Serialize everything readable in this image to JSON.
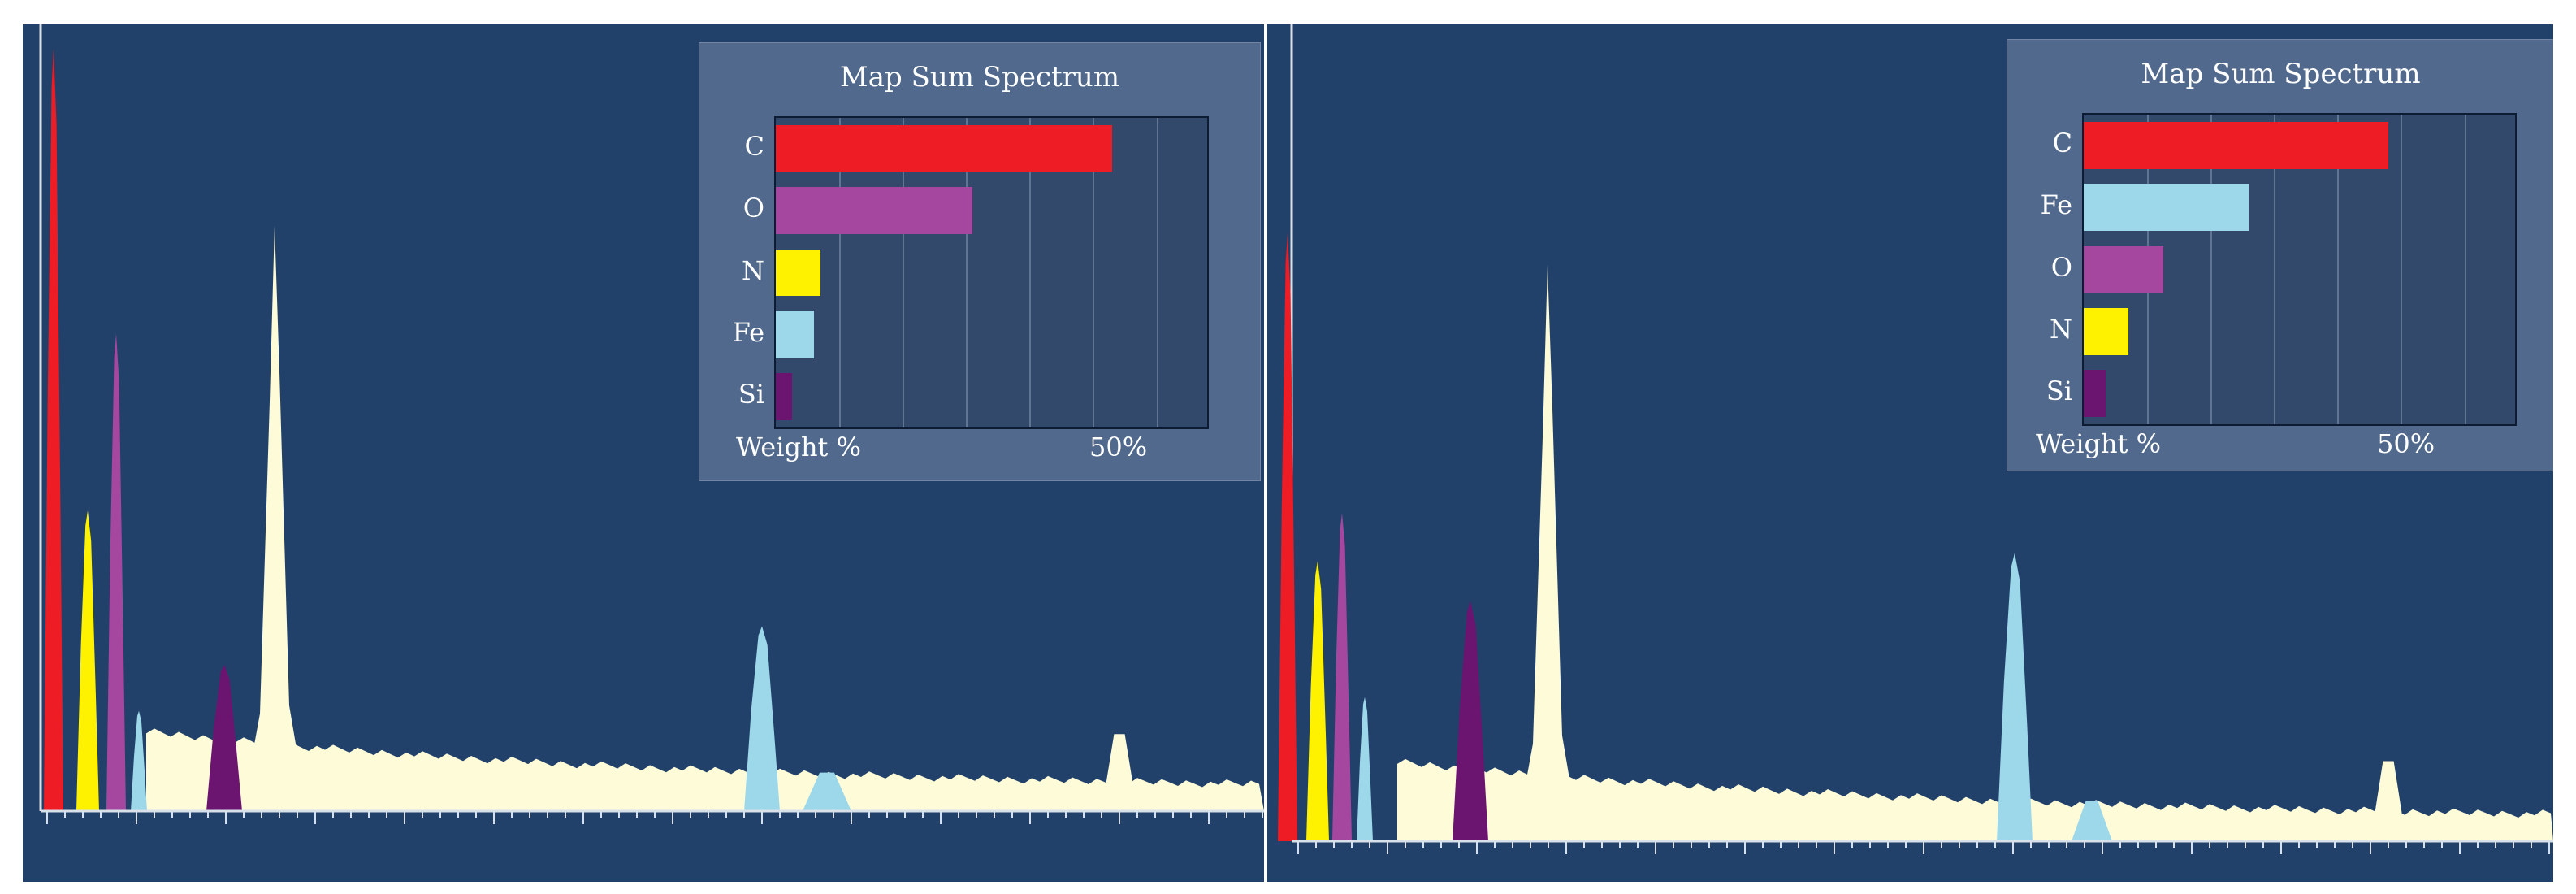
{
  "chart_data": [
    {
      "type": "bar",
      "title": "Map Sum Spectrum",
      "categories": [
        "C",
        "O",
        "N",
        "Fe",
        "Si"
      ],
      "values": [
        53,
        31,
        7,
        6,
        2.5
      ],
      "colors": [
        "#ee1c24",
        "#a5479f",
        "#fff200",
        "#9dd7ea",
        "#6b1570"
      ],
      "xlabel": "Weight %",
      "x_tick_label": "50%",
      "xlim": [
        0,
        68
      ],
      "spectrum_peaks": [
        {
          "element": "C",
          "color": "#ee1c24",
          "height": 0.99
        },
        {
          "element": "N",
          "color": "#fff200",
          "height": 0.39
        },
        {
          "element": "O",
          "color": "#a5479f",
          "height": 0.62
        },
        {
          "element": "Fe",
          "color": "#9dd7ea",
          "height": 0.13
        },
        {
          "element": "Si",
          "color": "#6b1570",
          "height": 0.19
        },
        {
          "element": "Fe",
          "color": "#9dd7ea",
          "height": 0.24
        }
      ]
    },
    {
      "type": "bar",
      "title": "Map Sum Spectrum",
      "categories": [
        "C",
        "Fe",
        "O",
        "N",
        "Si"
      ],
      "values": [
        48,
        26,
        12.5,
        7,
        3.5
      ],
      "colors": [
        "#ee1c24",
        "#9dd7ea",
        "#a5479f",
        "#fff200",
        "#6b1570"
      ],
      "xlabel": "Weight %",
      "x_tick_label": "50%",
      "xlim": [
        0,
        68
      ],
      "spectrum_peaks": [
        {
          "element": "C",
          "color": "#ee1c24",
          "height": 0.76
        },
        {
          "element": "N",
          "color": "#fff200",
          "height": 0.35
        },
        {
          "element": "O",
          "color": "#a5479f",
          "height": 0.41
        },
        {
          "element": "Fe",
          "color": "#9dd7ea",
          "height": 0.18
        },
        {
          "element": "Si",
          "color": "#6b1570",
          "height": 0.3
        },
        {
          "element": "Fe",
          "color": "#9dd7ea",
          "height": 0.36
        }
      ]
    }
  ]
}
